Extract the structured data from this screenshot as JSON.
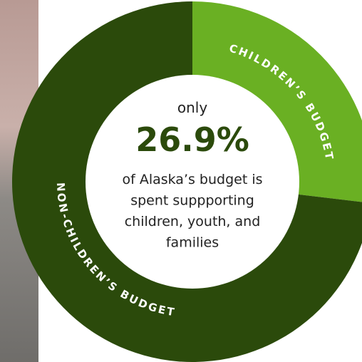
{
  "chart_data": {
    "type": "donut",
    "categories": [
      "CHILDREN’S BUDGET",
      "NON-CHILDREN’S BUDGET"
    ],
    "values": [
      26.9,
      73.1
    ],
    "value_labels": [
      "26.9%",
      null
    ],
    "colors": [
      "#6ab023",
      "#2b4a0b"
    ],
    "lead": "only",
    "note": [
      "of Alaska’s budget is",
      "spent suppporting",
      "children, youth, and",
      "families"
    ]
  }
}
